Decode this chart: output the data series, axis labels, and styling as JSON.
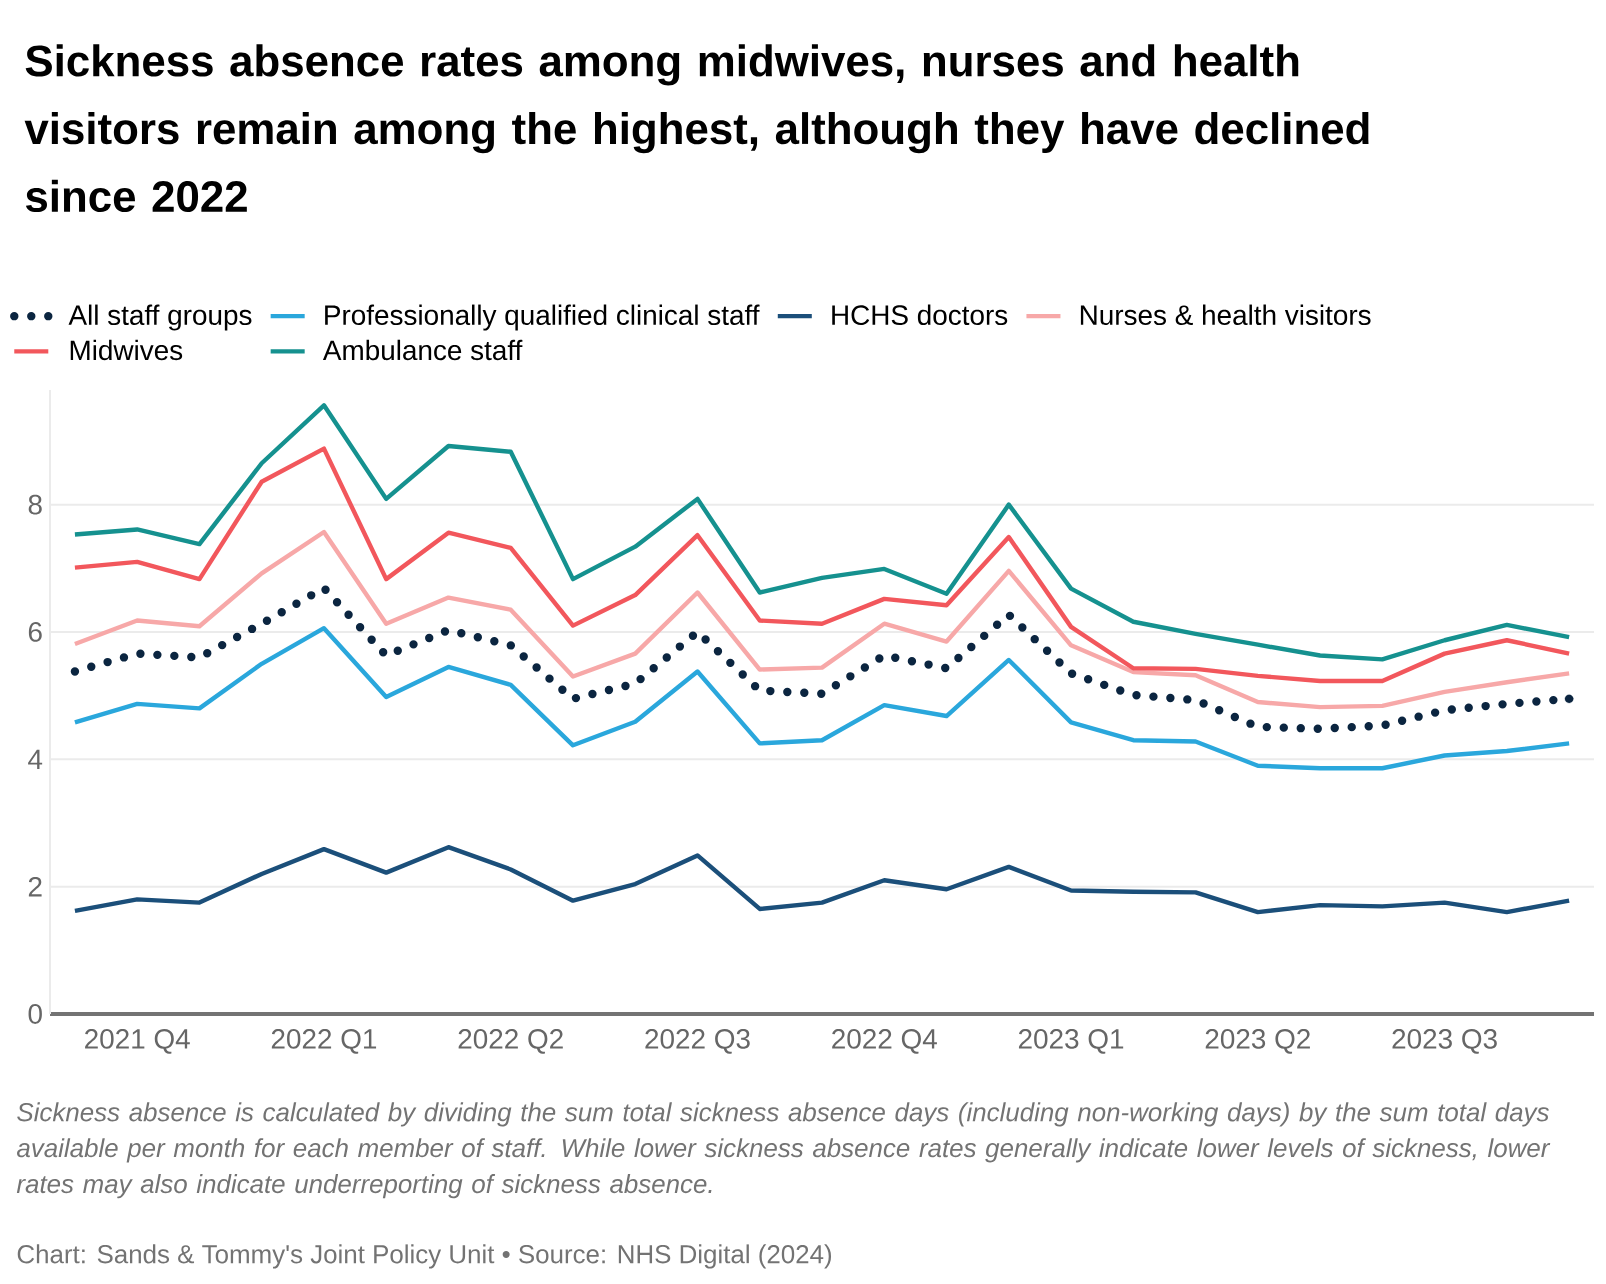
{
  "chart_data": {
    "type": "line",
    "title": "Sickness absence rates among midwives, nurses and health visitors remain among the highest, although they have declined since 2022",
    "categories": [
      null,
      "2021 Q4",
      null,
      null,
      "2022 Q1",
      null,
      null,
      "2022 Q2",
      null,
      null,
      "2022 Q3",
      null,
      null,
      "2022 Q4",
      null,
      null,
      "2023 Q1",
      null,
      null,
      "2023 Q2",
      null,
      null,
      "2023 Q3",
      null,
      null
    ],
    "series": [
      {
        "name": "All staff groups",
        "color": "#0b2540",
        "line_style": "dotted",
        "values": [
          5.38,
          5.66,
          5.6,
          6.13,
          6.69,
          5.63,
          6.03,
          5.79,
          4.95,
          5.19,
          6.0,
          5.08,
          5.03,
          5.63,
          5.43,
          6.27,
          5.35,
          5.01,
          4.93,
          4.51,
          4.48,
          4.53,
          4.77,
          4.87,
          4.95
        ]
      },
      {
        "name": "Professionally qualified clinical staff",
        "color": "#2aa7dc",
        "line_style": "solid",
        "values": [
          4.58,
          4.87,
          4.8,
          5.5,
          6.06,
          4.98,
          5.45,
          5.17,
          4.22,
          4.59,
          5.38,
          4.25,
          4.3,
          4.85,
          4.68,
          5.56,
          4.58,
          4.3,
          4.28,
          3.9,
          3.86,
          3.86,
          4.06,
          4.13,
          4.25
        ]
      },
      {
        "name": "HCHS doctors",
        "color": "#1b4f7a",
        "line_style": "solid",
        "values": [
          1.62,
          1.8,
          1.75,
          2.2,
          2.59,
          2.22,
          2.62,
          2.27,
          1.78,
          2.04,
          2.49,
          1.65,
          1.75,
          2.1,
          1.96,
          2.31,
          1.94,
          1.92,
          1.91,
          1.6,
          1.71,
          1.69,
          1.75,
          1.6,
          1.78
        ]
      },
      {
        "name": "Nurses & health visitors",
        "color": "#f7a8a8",
        "line_style": "solid",
        "values": [
          5.81,
          6.18,
          6.09,
          6.92,
          7.57,
          6.13,
          6.54,
          6.35,
          5.3,
          5.66,
          6.62,
          5.41,
          5.44,
          6.13,
          5.85,
          6.96,
          5.79,
          5.37,
          5.32,
          4.9,
          4.82,
          4.84,
          5.06,
          5.21,
          5.35
        ]
      },
      {
        "name": "Midwives",
        "color": "#f2575c",
        "line_style": "solid",
        "values": [
          7.01,
          7.1,
          6.83,
          8.36,
          8.88,
          6.83,
          7.56,
          7.32,
          6.1,
          6.58,
          7.52,
          6.18,
          6.13,
          6.52,
          6.42,
          7.49,
          6.08,
          5.43,
          5.42,
          5.31,
          5.23,
          5.23,
          5.66,
          5.87,
          5.66
        ]
      },
      {
        "name": "Ambulance staff",
        "color": "#15918f",
        "line_style": "solid",
        "values": [
          7.53,
          7.61,
          7.38,
          8.65,
          9.56,
          8.09,
          8.92,
          8.83,
          6.83,
          7.34,
          8.09,
          6.62,
          6.85,
          6.99,
          6.6,
          8.0,
          6.68,
          6.16,
          5.97,
          5.8,
          5.63,
          5.57,
          5.87,
          6.11,
          5.92
        ]
      }
    ],
    "ylim": [
      0,
      9.8
    ],
    "yticks": [
      0,
      2,
      4,
      6,
      8
    ],
    "grid": "y",
    "legend": "top",
    "annotations": [
      "Sickness absence is calculated by dividing the sum total sickness absence days (including non-working days) by the sum total days available per month for each member of staff. While lower sickness absence rates generally indicate lower levels of sickness, lower rates may also indicate underreporting of sickness absence.",
      "Chart: Sands & Tommy's Joint Policy Unit • Source: NHS Digital (2024)"
    ]
  }
}
